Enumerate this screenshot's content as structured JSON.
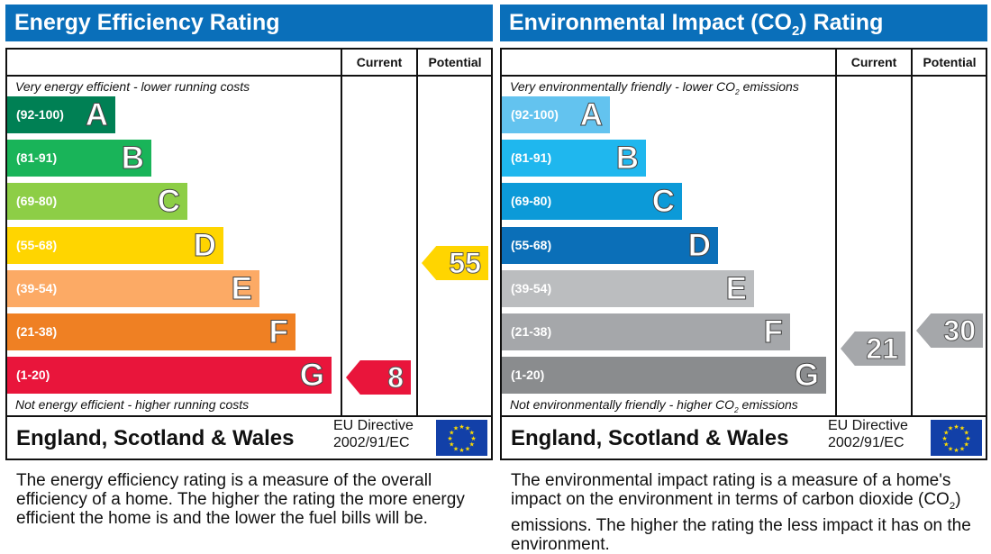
{
  "energy": {
    "title": "Energy Efficiency Rating",
    "col_current": "Current",
    "col_potential": "Potential",
    "top_note": "Very energy efficient - lower running costs",
    "bottom_note": "Not energy efficient - higher running costs",
    "region": "England, Scotland & Wales",
    "eu_line1": "EU Directive",
    "eu_line2": "2002/91/EC",
    "bands": [
      {
        "range": "(92-100)",
        "letter": "A",
        "color": "#008054"
      },
      {
        "range": "(81-91)",
        "letter": "B",
        "color": "#19b459"
      },
      {
        "range": "(69-80)",
        "letter": "C",
        "color": "#8dce46"
      },
      {
        "range": "(55-68)",
        "letter": "D",
        "color": "#ffd500"
      },
      {
        "range": "(39-54)",
        "letter": "E",
        "color": "#fcaa65"
      },
      {
        "range": "(21-38)",
        "letter": "F",
        "color": "#ef8023"
      },
      {
        "range": "(1-20)",
        "letter": "G",
        "color": "#e9153b"
      }
    ],
    "current": {
      "value": "8",
      "band": "G",
      "color": "#e9153b"
    },
    "potential": {
      "value": "55",
      "band": "D",
      "color": "#ffd500"
    },
    "description": "The energy efficiency rating is a measure of the overall efficiency of a home. The higher the rating the more energy efficient the home is and the lower the fuel bills will be."
  },
  "environment": {
    "title": "Environmental Impact (CO2) Rating",
    "col_current": "Current",
    "col_potential": "Potential",
    "top_note": "Very environmentally friendly - lower CO2 emissions",
    "bottom_note": "Not environmentally friendly - higher CO2 emissions",
    "region": "England, Scotland & Wales",
    "eu_line1": "EU Directive",
    "eu_line2": "2002/91/EC",
    "bands": [
      {
        "range": "(92-100)",
        "letter": "A",
        "color": "#63c3ef"
      },
      {
        "range": "(81-91)",
        "letter": "B",
        "color": "#1fb7ee"
      },
      {
        "range": "(69-80)",
        "letter": "C",
        "color": "#0c9ad8"
      },
      {
        "range": "(55-68)",
        "letter": "D",
        "color": "#0b6fb8"
      },
      {
        "range": "(39-54)",
        "letter": "E",
        "color": "#bbbdbf"
      },
      {
        "range": "(21-38)",
        "letter": "F",
        "color": "#a5a7aa"
      },
      {
        "range": "(1-20)",
        "letter": "G",
        "color": "#8a8c8e"
      }
    ],
    "current": {
      "value": "21",
      "band": "F",
      "color": "#a5a7aa"
    },
    "potential": {
      "value": "30",
      "band": "F",
      "color": "#a5a7aa"
    },
    "description": "The environmental impact rating is a measure of a home's impact on the environment in terms of carbon dioxide (CO2) emissions. The higher the rating the less impact it has on the environment."
  }
}
